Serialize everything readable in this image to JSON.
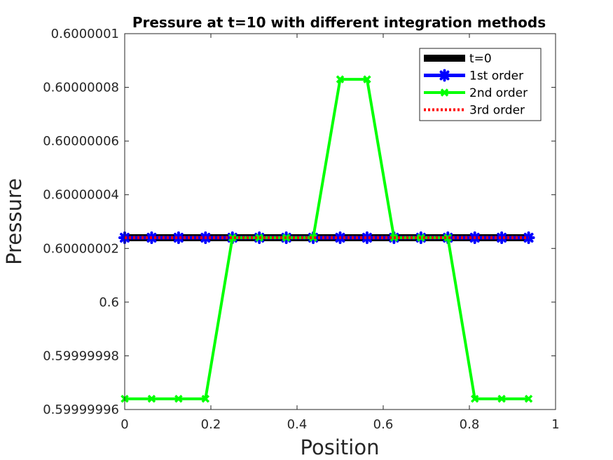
{
  "chart_data": {
    "type": "line",
    "title": "Pressure at t=10 with different integration methods",
    "xlabel": "Position",
    "ylabel": "Pressure",
    "xlim": [
      0,
      1
    ],
    "ylim": [
      0.59999996,
      0.6000001
    ],
    "x_ticks": [
      0,
      0.2,
      0.4,
      0.6,
      0.8,
      1
    ],
    "x_tick_labels": [
      "0",
      "0.2",
      "0.4",
      "0.6",
      "0.8",
      "1"
    ],
    "y_ticks": [
      0.59999996,
      0.59999998,
      0.6,
      0.60000002,
      0.60000004,
      0.60000006,
      0.60000008,
      0.6000001
    ],
    "y_tick_labels": [
      "0.59999996",
      "0.59999998",
      "0.6",
      "0.60000002",
      "0.60000004",
      "0.60000006",
      "0.60000008",
      "0.6000001"
    ],
    "grid": false,
    "legend_position": "top-right",
    "x": [
      0.0,
      0.0625,
      0.125,
      0.1875,
      0.25,
      0.3125,
      0.375,
      0.4375,
      0.5,
      0.5625,
      0.625,
      0.6875,
      0.75,
      0.8125,
      0.875,
      0.9375
    ],
    "series": [
      {
        "name": "t=0",
        "color": "#000000",
        "marker": "none",
        "style": "solid",
        "values": [
          0.600000024,
          0.600000024,
          0.600000024,
          0.600000024,
          0.600000024,
          0.600000024,
          0.600000024,
          0.600000024,
          0.600000024,
          0.600000024,
          0.600000024,
          0.600000024,
          0.600000024,
          0.600000024,
          0.600000024,
          0.600000024
        ]
      },
      {
        "name": "1st order",
        "color": "#0000ff",
        "marker": "star",
        "style": "solid",
        "values": [
          0.600000024,
          0.600000024,
          0.600000024,
          0.600000024,
          0.600000024,
          0.600000024,
          0.600000024,
          0.600000024,
          0.600000024,
          0.600000024,
          0.600000024,
          0.600000024,
          0.600000024,
          0.600000024,
          0.600000024,
          0.600000024
        ]
      },
      {
        "name": "2nd order",
        "color": "#00ff00",
        "marker": "x",
        "style": "solid",
        "values": [
          0.599999964,
          0.599999964,
          0.599999964,
          0.599999964,
          0.600000024,
          0.600000024,
          0.600000024,
          0.600000024,
          0.600000083,
          0.600000083,
          0.600000024,
          0.600000024,
          0.600000024,
          0.599999964,
          0.599999964,
          0.599999964
        ]
      },
      {
        "name": "3rd order",
        "color": "#ff0000",
        "marker": "none",
        "style": "dotted",
        "values": [
          0.600000024,
          0.600000024,
          0.600000024,
          0.600000024,
          0.600000024,
          0.600000024,
          0.600000024,
          0.600000024,
          0.600000024,
          0.600000024,
          0.600000024,
          0.600000024,
          0.600000024,
          0.600000024,
          0.600000024,
          0.600000024
        ]
      }
    ]
  }
}
